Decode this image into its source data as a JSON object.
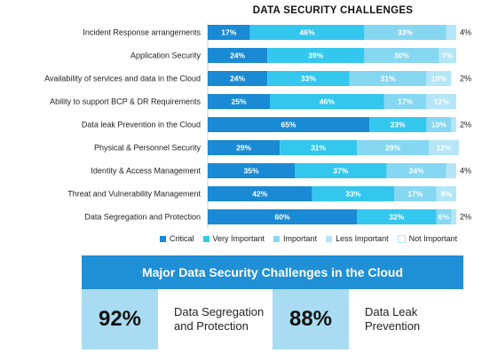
{
  "chart_data": {
    "type": "bar",
    "orientation": "horizontal",
    "stacked": true,
    "title": "DATA SECURITY CHALLENGES",
    "categories": [
      "Incident Response arrangements",
      "Application Security",
      "Availability of services and data in the Cloud",
      "Ability to support BCP & DR Requirements",
      "Data leak Prevention in the Cloud",
      "Physical & Personnel Security",
      "Identity & Access Management",
      "Threat and Vulnerability Management",
      "Data Segregation and Protection"
    ],
    "series": [
      {
        "name": "Critical",
        "color": "#1a8ad4",
        "values": [
          17,
          24,
          24,
          25,
          65,
          29,
          35,
          42,
          60
        ]
      },
      {
        "name": "Very Important",
        "color": "#34c7ee",
        "values": [
          46,
          39,
          33,
          46,
          23,
          31,
          37,
          33,
          32
        ]
      },
      {
        "name": "Important",
        "color": "#86d7f2",
        "values": [
          33,
          30,
          31,
          17,
          10,
          29,
          24,
          17,
          6
        ]
      },
      {
        "name": "Less Important",
        "color": "#b5e6f7",
        "values": [
          4,
          7,
          10,
          12,
          2,
          12,
          4,
          8,
          2
        ]
      },
      {
        "name": "Not Important",
        "color": "#ffffff",
        "values": [
          0,
          0,
          2,
          0,
          0,
          0,
          0,
          0,
          0
        ]
      }
    ],
    "segment_labels": [
      [
        "17%",
        "46%",
        "33%",
        ""
      ],
      [
        "24%",
        "39%",
        "30%",
        "7%"
      ],
      [
        "24%",
        "33%",
        "31%",
        "10%"
      ],
      [
        "25%",
        "46%",
        "17%",
        "12%"
      ],
      [
        "65%",
        "23%",
        "10%",
        ""
      ],
      [
        "29%",
        "31%",
        "29%",
        "12%"
      ],
      [
        "35%",
        "37%",
        "24%",
        ""
      ],
      [
        "42%",
        "33%",
        "17%",
        "8%"
      ],
      [
        "60%",
        "32%",
        "6%",
        ""
      ]
    ],
    "outside_labels": [
      "4%",
      "",
      "2%",
      "",
      "2%",
      "",
      "4%",
      "",
      "2%"
    ],
    "xlim": [
      0,
      100
    ],
    "legend_position": "bottom"
  },
  "panel": {
    "title": "Major Data Security Challenges in the Cloud",
    "stats": [
      {
        "pct": "92%",
        "label_line1": "Data Segregation",
        "label_line2": "and Protection"
      },
      {
        "pct": "88%",
        "label_line1": "Data Leak",
        "label_line2": "Prevention"
      }
    ]
  }
}
